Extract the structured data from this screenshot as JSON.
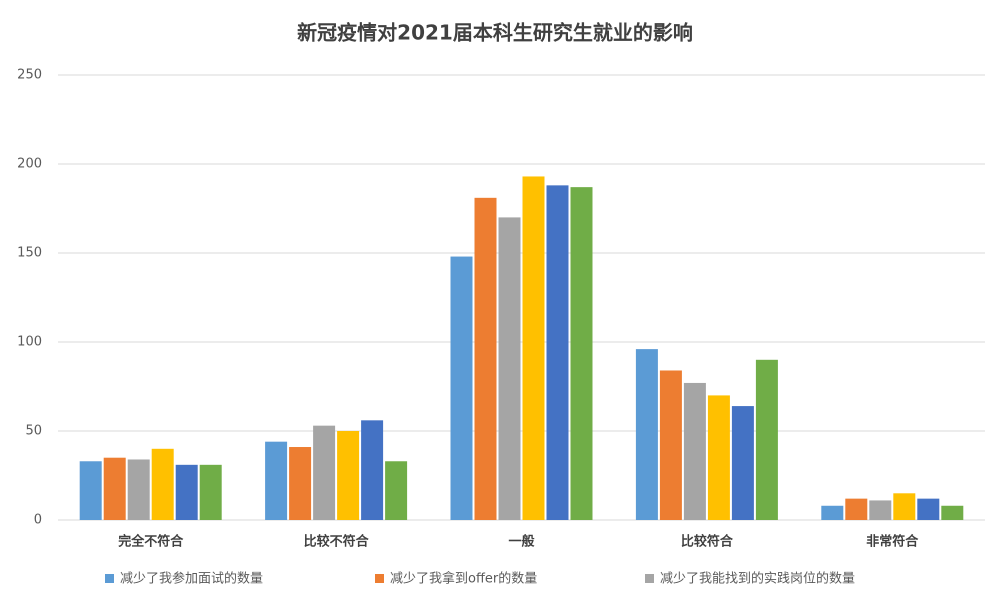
{
  "chart_data": {
    "type": "bar",
    "title": "新冠疫情对2021届本科生研究生就业的影响",
    "categories": [
      "完全不符合",
      "比较不符合",
      "一般",
      "比较符合",
      "非常符合"
    ],
    "series": [
      {
        "name": "减少了我参加面试的数量",
        "color": "#5b9bd5",
        "values": [
          33,
          44,
          148,
          96,
          8
        ]
      },
      {
        "name": "减少了我拿到offer的数量",
        "color": "#ed7d31",
        "values": [
          35,
          41,
          181,
          84,
          12
        ]
      },
      {
        "name": "减少了我能找到的实践岗位的数量",
        "color": "#a5a5a5",
        "values": [
          34,
          53,
          170,
          77,
          11
        ]
      },
      {
        "color": "#ffc000",
        "values": [
          40,
          50,
          193,
          70,
          15
        ]
      },
      {
        "color": "#4472c4",
        "values": [
          31,
          56,
          188,
          64,
          12
        ]
      },
      {
        "color": "#70ad47",
        "values": [
          31,
          33,
          187,
          90,
          8
        ]
      }
    ],
    "ylim": [
      0,
      250
    ],
    "yticks": [
      0,
      50,
      100,
      150,
      200,
      250
    ],
    "grid": true
  }
}
